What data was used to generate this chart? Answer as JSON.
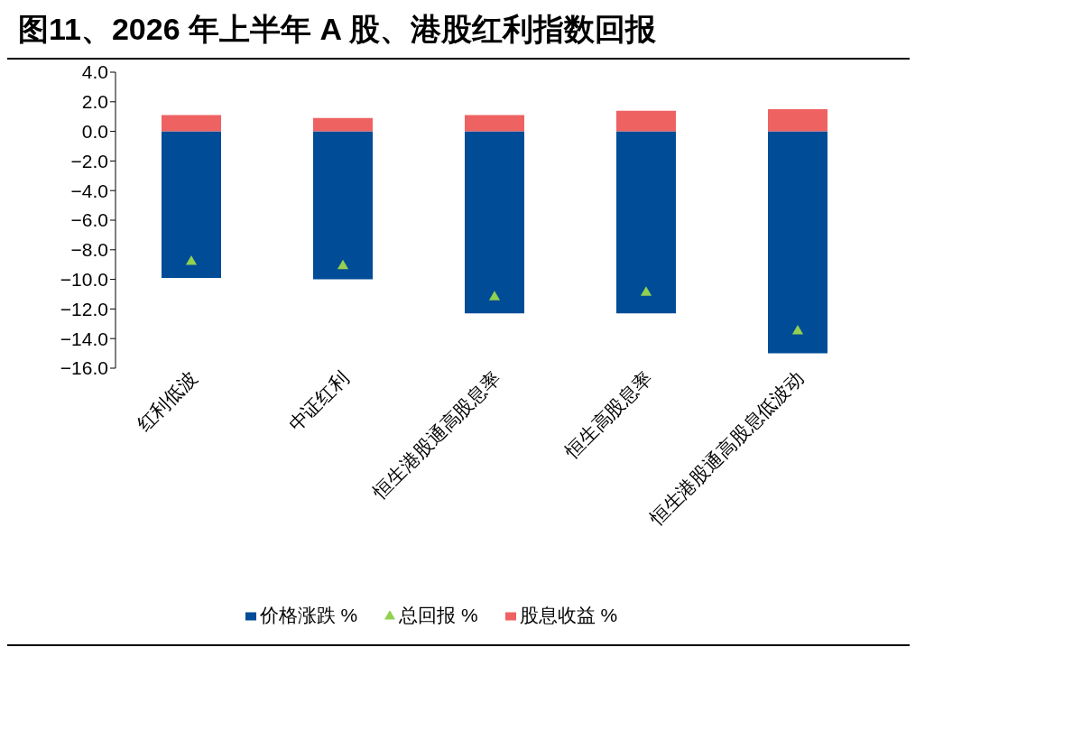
{
  "chart_data": {
    "type": "bar",
    "title": "图11、2026 年上半年 A 股、港股红利指数回报",
    "categories": [
      "红利低波",
      "中证红利",
      "恒生港股通高股息率",
      "恒生高股息率",
      "恒生港股通高股息低波动"
    ],
    "stacked": true,
    "series": [
      {
        "name": "价格涨跌 %",
        "color": "#004c97",
        "values": [
          -9.9,
          -10.0,
          -12.3,
          -12.3,
          -15.0
        ]
      },
      {
        "name": "股息收益 %",
        "color": "#ef6262",
        "values": [
          1.1,
          0.9,
          1.1,
          1.4,
          1.5
        ]
      },
      {
        "name": "总回报 %",
        "type": "scatter",
        "marker": "triangle",
        "color": "#92d050",
        "x": [
          "红利低波",
          "中证红利",
          "恒生港股通高股息率",
          "恒生高股息率",
          "恒生港股通高股息低波动"
        ],
        "values": [
          -8.8,
          -9.1,
          -11.2,
          -10.9,
          -13.5
        ]
      }
    ],
    "ylim": [
      -16,
      4
    ],
    "yticks": [
      {
        "value": 4,
        "label": "4.0"
      },
      {
        "value": 2,
        "label": "2.0"
      },
      {
        "value": 0,
        "label": "0.0"
      },
      {
        "value": -2,
        "label": "−2.0"
      },
      {
        "value": -4,
        "label": "−4.0"
      },
      {
        "value": -6,
        "label": "−6.0"
      },
      {
        "value": -8,
        "label": "−8.0"
      },
      {
        "value": -10,
        "label": "−10.0"
      },
      {
        "value": -12,
        "label": "−12.0"
      },
      {
        "value": -14,
        "label": "−14.0"
      },
      {
        "value": -16,
        "label": "−16.0"
      }
    ],
    "grid": false,
    "legend": "bottom"
  }
}
